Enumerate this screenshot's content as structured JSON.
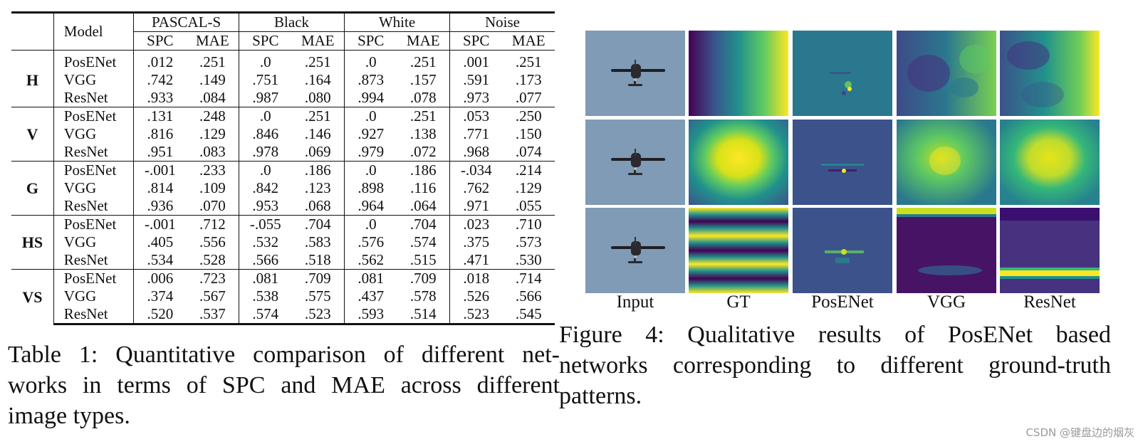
{
  "table": {
    "model_header": "Model",
    "groups": [
      "PASCAL-S",
      "Black",
      "White",
      "Noise"
    ],
    "metrics": [
      "SPC",
      "MAE"
    ],
    "sections": [
      {
        "label": "H",
        "rows": [
          {
            "model": "PosENet",
            "values": [
              ".012",
              ".251",
              ".0",
              ".251",
              ".0",
              ".251",
              ".001",
              ".251"
            ]
          },
          {
            "model": "VGG",
            "values": [
              ".742",
              ".149",
              ".751",
              ".164",
              ".873",
              ".157",
              ".591",
              ".173"
            ]
          },
          {
            "model": "ResNet",
            "values": [
              ".933",
              ".084",
              ".987",
              ".080",
              ".994",
              ".078",
              ".973",
              ".077"
            ]
          }
        ]
      },
      {
        "label": "V",
        "rows": [
          {
            "model": "PosENet",
            "values": [
              ".131",
              ".248",
              ".0",
              ".251",
              ".0",
              ".251",
              ".053",
              ".250"
            ]
          },
          {
            "model": "VGG",
            "values": [
              ".816",
              ".129",
              ".846",
              ".146",
              ".927",
              ".138",
              ".771",
              ".150"
            ]
          },
          {
            "model": "ResNet",
            "values": [
              ".951",
              ".083",
              ".978",
              ".069",
              ".979",
              ".072",
              ".968",
              ".074"
            ]
          }
        ]
      },
      {
        "label": "G",
        "rows": [
          {
            "model": "PosENet",
            "values": [
              "-.001",
              ".233",
              ".0",
              ".186",
              ".0",
              ".186",
              "-.034",
              ".214"
            ]
          },
          {
            "model": "VGG",
            "values": [
              ".814",
              ".109",
              ".842",
              ".123",
              ".898",
              ".116",
              ".762",
              ".129"
            ]
          },
          {
            "model": "ResNet",
            "values": [
              ".936",
              ".070",
              ".953",
              ".068",
              ".964",
              ".064",
              ".971",
              ".055"
            ]
          }
        ]
      },
      {
        "label": "HS",
        "rows": [
          {
            "model": "PosENet",
            "values": [
              "-.001",
              ".712",
              "-.055",
              ".704",
              ".0",
              ".704",
              ".023",
              ".710"
            ]
          },
          {
            "model": "VGG",
            "values": [
              ".405",
              ".556",
              ".532",
              ".583",
              ".576",
              ".574",
              ".375",
              ".573"
            ]
          },
          {
            "model": "ResNet",
            "values": [
              ".534",
              ".528",
              ".566",
              ".518",
              ".562",
              ".515",
              ".471",
              ".530"
            ]
          }
        ]
      },
      {
        "label": "VS",
        "rows": [
          {
            "model": "PosENet",
            "values": [
              ".006",
              ".723",
              ".081",
              ".709",
              ".081",
              ".709",
              ".018",
              ".714"
            ]
          },
          {
            "model": "VGG",
            "values": [
              ".374",
              ".567",
              ".538",
              ".575",
              ".437",
              ".578",
              ".526",
              ".566"
            ]
          },
          {
            "model": "ResNet",
            "values": [
              ".520",
              ".537",
              ".574",
              ".523",
              ".593",
              ".514",
              ".523",
              ".545"
            ]
          }
        ]
      }
    ],
    "caption_lines": [
      "Table 1: Quantitative comparison of different net-",
      "works in terms of SPC and MAE across different",
      "image types."
    ]
  },
  "figure": {
    "columns": [
      "Input",
      "GT",
      "PosENet",
      "VGG",
      "ResNet"
    ],
    "caption_lines": [
      "Figure 4:  Qualitative results of PosENet based",
      "networks corresponding to different ground-truth",
      "patterns."
    ],
    "colormap_colors": [
      "#440154",
      "#3b528b",
      "#21918c",
      "#5ec962",
      "#fde725"
    ],
    "sky_color": "#7f9bb5"
  },
  "watermark": "CSDN @键盘边的烟灰"
}
